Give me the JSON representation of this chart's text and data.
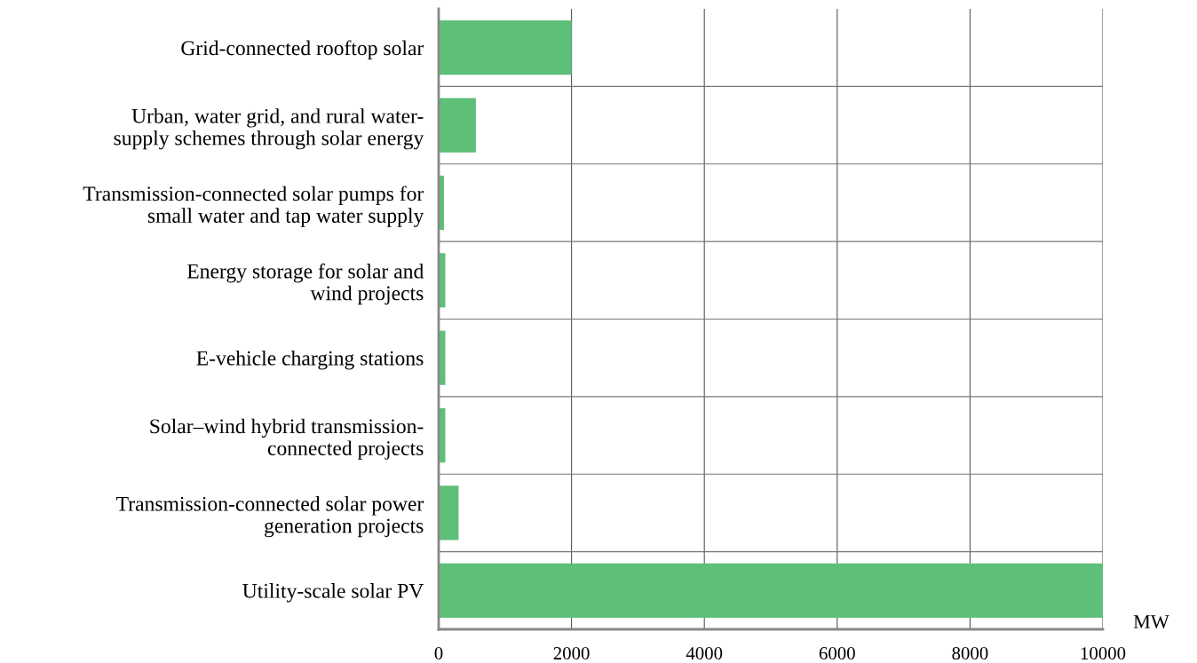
{
  "chart_data": {
    "type": "bar",
    "orientation": "horizontal",
    "xlabel": "MW",
    "categories": [
      "Grid-connected rooftop solar",
      "Urban, water grid, and rural water-\nsupply schemes through solar energy",
      "Transmission-connected solar pumps for\nsmall water and tap water supply",
      "Energy storage for solar and\nwind projects",
      "E-vehicle charging stations",
      "Solar–wind hybrid transmission-\nconnected projects",
      "Transmission-connected solar power\ngeneration projects",
      "Utility-scale solar PV"
    ],
    "values": [
      2000,
      560,
      80,
      100,
      100,
      100,
      300,
      10000
    ],
    "color": "#5ebf78",
    "xlim": [
      0,
      10000
    ],
    "xticks": [
      0,
      2000,
      4000,
      6000,
      8000,
      10000
    ],
    "grid": true
  }
}
